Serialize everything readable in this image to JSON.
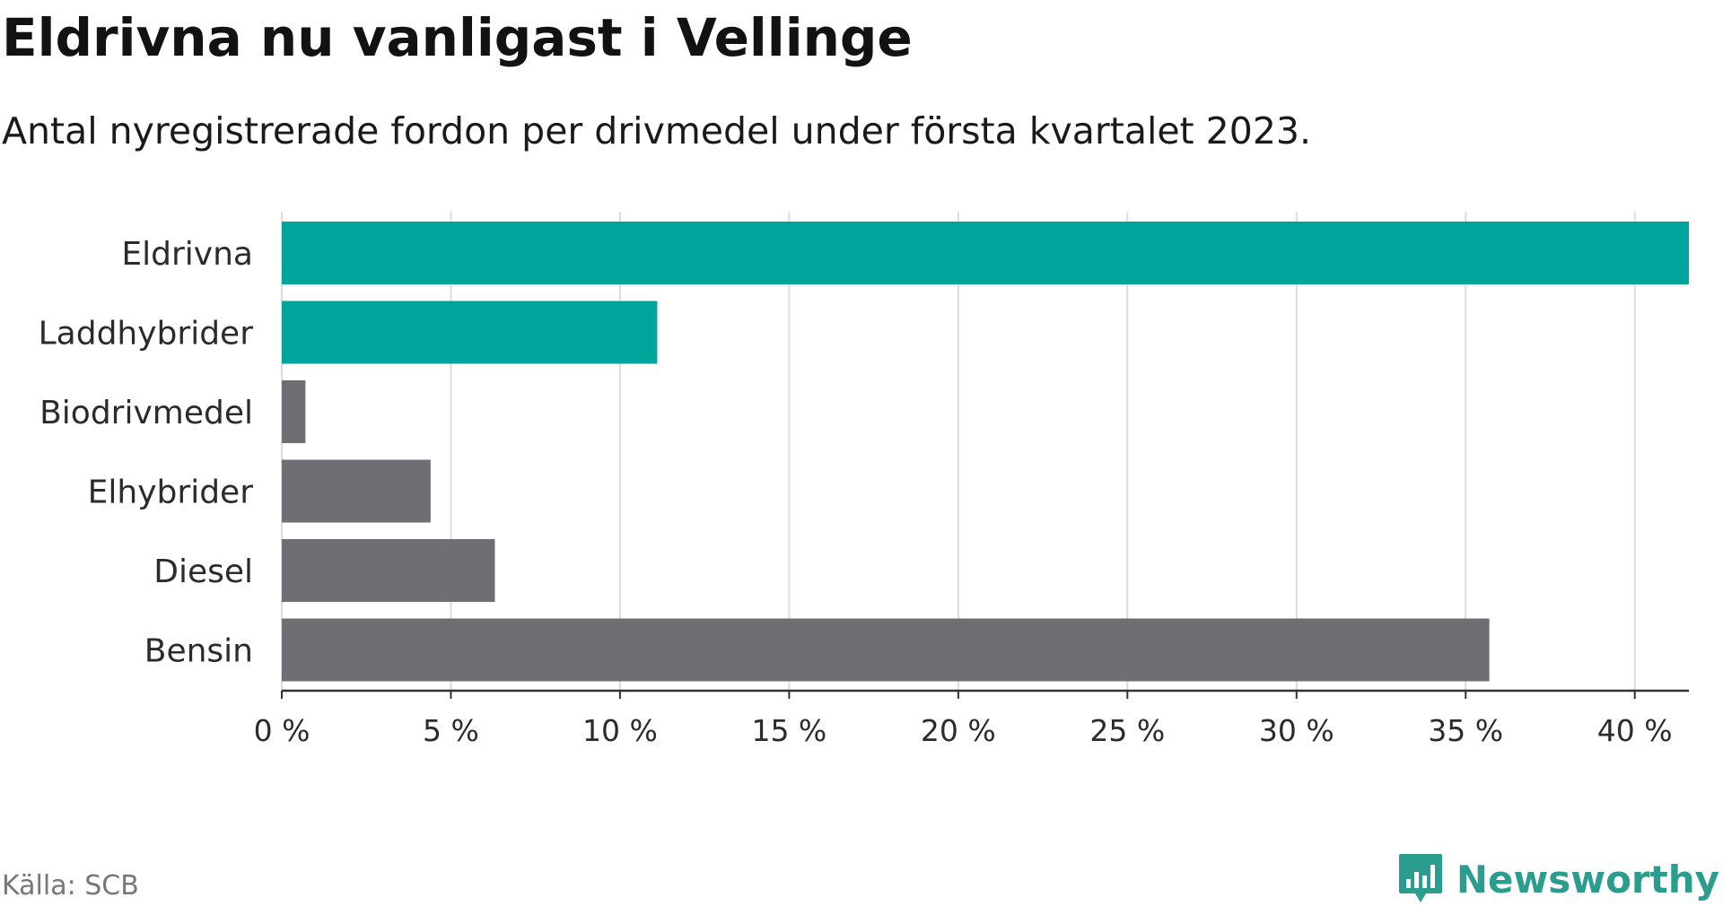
{
  "header": {
    "title": "Eldrivna nu vanligast i Vellinge",
    "subtitle": "Antal nyregistrerade fordon per drivmedel under första kvartalet 2023."
  },
  "footer": {
    "source": "Källa: SCB",
    "brand": "Newsworthy"
  },
  "colors": {
    "highlight": "#00a49a",
    "default": "#6f6e75",
    "brand": "#2a9d8f"
  },
  "chart_data": {
    "type": "bar",
    "orientation": "horizontal",
    "categories": [
      "Eldrivna",
      "Laddhybrider",
      "Biodrivmedel",
      "Elhybrider",
      "Diesel",
      "Bensin"
    ],
    "values": [
      41.6,
      11.1,
      0.7,
      4.4,
      6.3,
      35.7
    ],
    "highlighted": [
      true,
      true,
      false,
      false,
      false,
      false
    ],
    "xlim": [
      0,
      41.6
    ],
    "ticks": [
      0,
      5,
      10,
      15,
      20,
      25,
      30,
      35,
      40
    ],
    "tick_labels": [
      "0 %",
      "5 %",
      "10 %",
      "15 %",
      "20 %",
      "25 %",
      "30 %",
      "35 %",
      "40 %"
    ],
    "grid": true,
    "legend": "none"
  }
}
